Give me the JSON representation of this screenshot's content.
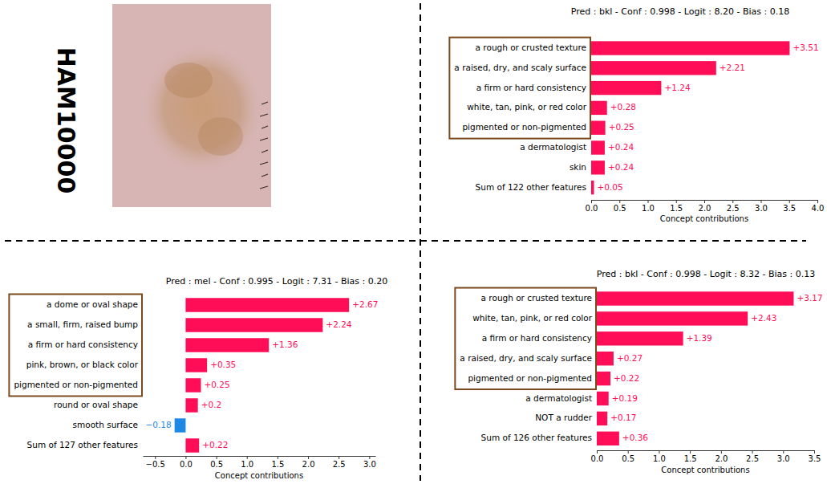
{
  "image": {
    "label": "HAM10000"
  },
  "chart_data": [
    {
      "type": "bar",
      "orientation": "horizontal",
      "data_labels": true,
      "title": "Pred : bkl - Conf : 0.998 - Logit : 8.20 - Bias : 0.18",
      "categories": [
        "a rough or crusted texture",
        "a raised, dry, and scaly surface",
        "a firm or hard consistency",
        "white, tan, pink, or red color",
        "pigmented or non-pigmented",
        "a dermatologist",
        "skin",
        "Sum of 122 other features"
      ],
      "values": [
        3.51,
        2.21,
        1.24,
        0.28,
        0.25,
        0.24,
        0.24,
        0.05
      ],
      "value_labels": [
        "+3.51",
        "+2.21",
        "+1.24",
        "+0.28",
        "+0.25",
        "+0.24",
        "+0.24",
        "+0.05"
      ],
      "colors": [
        "#ff0d57",
        "#ff0d57",
        "#ff0d57",
        "#ff0d57",
        "#ff0d57",
        "#ff0d57",
        "#ff0d57",
        "#ff0d57"
      ],
      "xlabel": "Concept contributions",
      "xlim": [
        0,
        4.0
      ],
      "xticks": [
        {
          "value": 0,
          "label": "0.0"
        },
        {
          "value": 0.5,
          "label": "0.5"
        },
        {
          "value": 1,
          "label": "1.0"
        },
        {
          "value": 1.5,
          "label": "1.5"
        },
        {
          "value": 2,
          "label": "2.0"
        },
        {
          "value": 2.5,
          "label": "2.5"
        },
        {
          "value": 3,
          "label": "3.0"
        },
        {
          "value": 3.5,
          "label": "3.5"
        },
        {
          "value": 4,
          "label": "4.0"
        }
      ]
    },
    {
      "type": "bar",
      "orientation": "horizontal",
      "data_labels": true,
      "title": "Pred : mel - Conf : 0.995 - Logit : 7.31 - Bias : 0.20",
      "categories": [
        "a dome or oval shape",
        "a small, firm, raised bump",
        "a firm or hard consistency",
        "pink, brown, or black color",
        "pigmented or non-pigmented",
        "round or oval shape",
        "smooth surface",
        "Sum of 127 other features"
      ],
      "values": [
        2.67,
        2.24,
        1.36,
        0.35,
        0.25,
        0.2,
        -0.18,
        0.22
      ],
      "value_labels": [
        "+2.67",
        "+2.24",
        "+1.36",
        "+0.35",
        "+0.25",
        "+0.2",
        "−0.18",
        "+0.22"
      ],
      "colors": [
        "#ff0d57",
        "#ff0d57",
        "#ff0d57",
        "#ff0d57",
        "#ff0d57",
        "#ff0d57",
        "#1e88e5",
        "#ff0d57"
      ],
      "xlabel": "Concept contributions",
      "xlim": [
        -0.7,
        3.1
      ],
      "xticks": [
        {
          "value": -0.5,
          "label": "−0.5"
        },
        {
          "value": 0,
          "label": "0.0"
        },
        {
          "value": 0.5,
          "label": "0.5"
        },
        {
          "value": 1,
          "label": "1.0"
        },
        {
          "value": 1.5,
          "label": "1.5"
        },
        {
          "value": 2,
          "label": "2.0"
        },
        {
          "value": 2.5,
          "label": "2.5"
        },
        {
          "value": 3,
          "label": "3.0"
        }
      ]
    },
    {
      "type": "bar",
      "orientation": "horizontal",
      "data_labels": true,
      "title": "Pred : bkl - Conf : 0.998 - Logit : 8.32 - Bias : 0.13",
      "categories": [
        "a rough or crusted texture",
        "white, tan, pink, or red color",
        "a firm or hard consistency",
        "a raised, dry, and scaly surface",
        "pigmented or non-pigmented",
        "a dermatologist",
        "NOT a rudder",
        "Sum of 126 other features"
      ],
      "values": [
        3.17,
        2.43,
        1.39,
        0.27,
        0.22,
        0.19,
        0.17,
        0.36
      ],
      "value_labels": [
        "+3.17",
        "+2.43",
        "+1.39",
        "+0.27",
        "+0.22",
        "+0.19",
        "+0.17",
        "+0.36"
      ],
      "colors": [
        "#ff0d57",
        "#ff0d57",
        "#ff0d57",
        "#ff0d57",
        "#ff0d57",
        "#ff0d57",
        "#ff0d57",
        "#ff0d57"
      ],
      "xlabel": "Concept contributions",
      "xlim": [
        0,
        3.5
      ],
      "xticks": [
        {
          "value": 0,
          "label": "0.0"
        },
        {
          "value": 0.5,
          "label": "0.5"
        },
        {
          "value": 1,
          "label": "1.0"
        },
        {
          "value": 1.5,
          "label": "1.5"
        },
        {
          "value": 2,
          "label": "2.0"
        },
        {
          "value": 2.5,
          "label": "2.5"
        },
        {
          "value": 3,
          "label": "3.0"
        },
        {
          "value": 3.5,
          "label": "3.5"
        }
      ]
    }
  ]
}
